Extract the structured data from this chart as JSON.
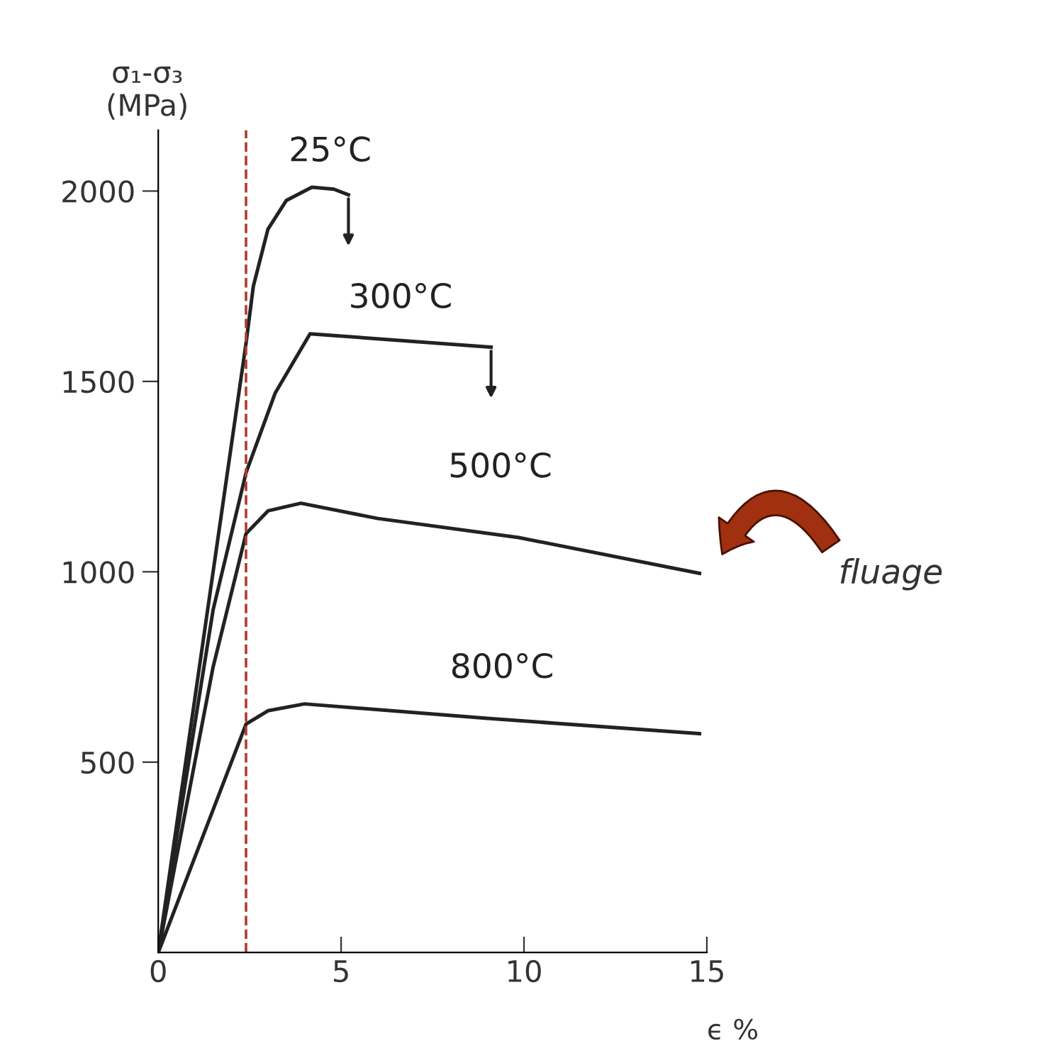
{
  "chart_data": {
    "type": "line",
    "ylabel": "σ₁-σ₃\n(MPa)",
    "xlabel": "ϵ %",
    "xlim": [
      0,
      15
    ],
    "ylim": [
      0,
      2160
    ],
    "xticks": [
      0,
      5,
      10,
      15
    ],
    "yticks": [
      500,
      1000,
      1500,
      2000
    ],
    "grid": false,
    "legend": false,
    "marker": "none",
    "line_style": "solid",
    "series": [
      {
        "name": "25°C",
        "color": "#222222",
        "x": [
          0,
          2.4,
          2.6,
          3.0,
          3.5,
          4.2,
          4.8,
          5.2
        ],
        "values": [
          0,
          1600,
          1750,
          1900,
          1975,
          2010,
          2005,
          1990
        ]
      },
      {
        "name": "300°C",
        "color": "#222222",
        "x": [
          0,
          1.5,
          2.4,
          3.2,
          4.15,
          9.1
        ],
        "values": [
          0,
          900,
          1260,
          1470,
          1625,
          1590
        ]
      },
      {
        "name": "500°C",
        "color": "#222222",
        "x": [
          0,
          1.5,
          2.4,
          3.0,
          3.9,
          6,
          9.85,
          14.8
        ],
        "values": [
          0,
          750,
          1100,
          1160,
          1180,
          1140,
          1090,
          996
        ]
      },
      {
        "name": "800°C",
        "color": "#222222",
        "x": [
          0,
          2.4,
          3.0,
          4.0,
          9,
          14.8
        ],
        "values": [
          0,
          600,
          635,
          653,
          615,
          575
        ]
      }
    ],
    "ref_lines": [
      {
        "axis": "x",
        "value": 2.4,
        "color": "#b03a2e",
        "line_style": "dashed"
      }
    ],
    "annotations": [
      "fluage"
    ]
  }
}
